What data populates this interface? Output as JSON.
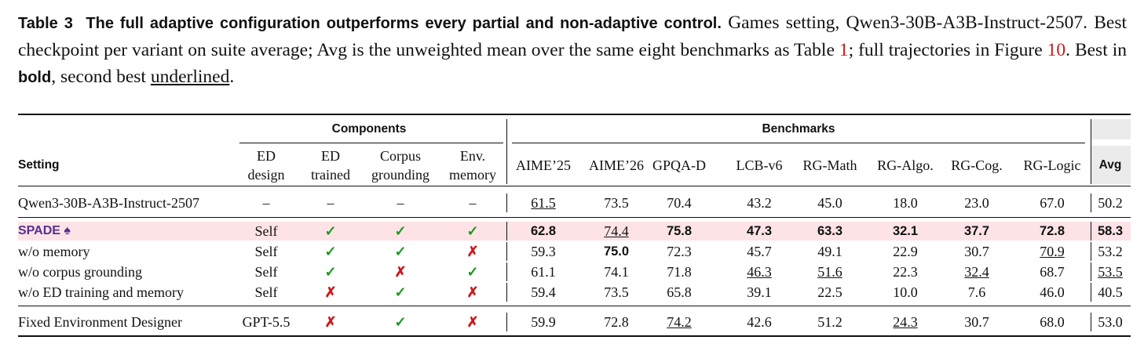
{
  "caption": {
    "label": "Table 3",
    "heading": "The full adaptive configuration outperforms every partial and non-adaptive control.",
    "text_1": "Games setting, Qwen3-30B-A3B-Instruct-2507. Best checkpoint per variant on suite average; Avg is the unweighted mean over the same eight benchmarks as Table ",
    "ref_table": "1",
    "text_2": "; full trajectories in Figure ",
    "ref_figure": "10",
    "text_3": ". Best in ",
    "bold_word": "bold",
    "text_4": ", second best ",
    "underline_word": "underlined",
    "text_5": "."
  },
  "table": {
    "group_headers": {
      "components": "Components",
      "benchmarks": "Benchmarks"
    },
    "setting_header": "Setting",
    "component_columns": [
      [
        "ED",
        "design"
      ],
      [
        "ED",
        "trained"
      ],
      [
        "Corpus",
        "grounding"
      ],
      [
        "Env.",
        "memory"
      ]
    ],
    "benchmark_columns": [
      "AIME’25",
      "AIME’26",
      "GPQA-D",
      "LCB-v6",
      "RG-Math",
      "RG-Algo.",
      "RG-Cog.",
      "RG-Logic"
    ],
    "avg_header": "Avg",
    "rows": [
      {
        "setting": "Qwen3-30B-A3B-Instruct-2507",
        "ed_design": "–",
        "components": [
          "–",
          "–",
          "–"
        ],
        "scores": [
          {
            "text": "61.5",
            "style": "underline"
          },
          {
            "text": "73.5"
          },
          {
            "text": "70.4"
          },
          {
            "text": "43.2"
          },
          {
            "text": "45.0"
          },
          {
            "text": "18.0"
          },
          {
            "text": "23.0"
          },
          {
            "text": "67.0"
          }
        ],
        "avg": {
          "text": "50.2"
        }
      },
      {
        "setting": "SPADE ♠",
        "highlight": true,
        "ed_design": "Self",
        "components": [
          "✓",
          "✓",
          "✓"
        ],
        "scores": [
          {
            "text": "62.8",
            "style": "bold"
          },
          {
            "text": "74.4",
            "style": "underline"
          },
          {
            "text": "75.8",
            "style": "bold"
          },
          {
            "text": "47.3",
            "style": "bold"
          },
          {
            "text": "63.3",
            "style": "bold"
          },
          {
            "text": "32.1",
            "style": "bold"
          },
          {
            "text": "37.7",
            "style": "bold"
          },
          {
            "text": "72.8",
            "style": "bold"
          }
        ],
        "avg": {
          "text": "58.3",
          "style": "bold"
        }
      },
      {
        "setting": "w/o memory",
        "ed_design": "Self",
        "components": [
          "✓",
          "✓",
          "✗"
        ],
        "scores": [
          {
            "text": "59.3"
          },
          {
            "text": "75.0",
            "style": "bold"
          },
          {
            "text": "72.3"
          },
          {
            "text": "45.7"
          },
          {
            "text": "49.1"
          },
          {
            "text": "22.9"
          },
          {
            "text": "30.7"
          },
          {
            "text": "70.9",
            "style": "underline"
          }
        ],
        "avg": {
          "text": "53.2"
        }
      },
      {
        "setting": "w/o corpus grounding",
        "ed_design": "Self",
        "components": [
          "✓",
          "✗",
          "✓"
        ],
        "scores": [
          {
            "text": "61.1"
          },
          {
            "text": "74.1"
          },
          {
            "text": "71.8"
          },
          {
            "text": "46.3",
            "style": "underline"
          },
          {
            "text": "51.6",
            "style": "underline"
          },
          {
            "text": "22.3"
          },
          {
            "text": "32.4",
            "style": "underline"
          },
          {
            "text": "68.7"
          }
        ],
        "avg": {
          "text": "53.5",
          "style": "underline"
        }
      },
      {
        "setting": "w/o ED training and memory",
        "ed_design": "Self",
        "components": [
          "✗",
          "✓",
          "✗"
        ],
        "scores": [
          {
            "text": "59.4"
          },
          {
            "text": "73.5"
          },
          {
            "text": "65.8"
          },
          {
            "text": "39.1"
          },
          {
            "text": "22.5"
          },
          {
            "text": "10.0"
          },
          {
            "text": "7.6"
          },
          {
            "text": "46.0"
          }
        ],
        "avg": {
          "text": "40.5"
        }
      },
      {
        "setting": "Fixed Environment Designer",
        "ed_design": "GPT-5.5",
        "components": [
          "✗",
          "✓",
          "✗"
        ],
        "scores": [
          {
            "text": "59.9"
          },
          {
            "text": "72.8"
          },
          {
            "text": "74.2",
            "style": "underline"
          },
          {
            "text": "42.6"
          },
          {
            "text": "51.2"
          },
          {
            "text": "24.3",
            "style": "underline"
          },
          {
            "text": "30.7"
          },
          {
            "text": "68.0"
          }
        ],
        "avg": {
          "text": "53.0"
        }
      }
    ]
  }
}
